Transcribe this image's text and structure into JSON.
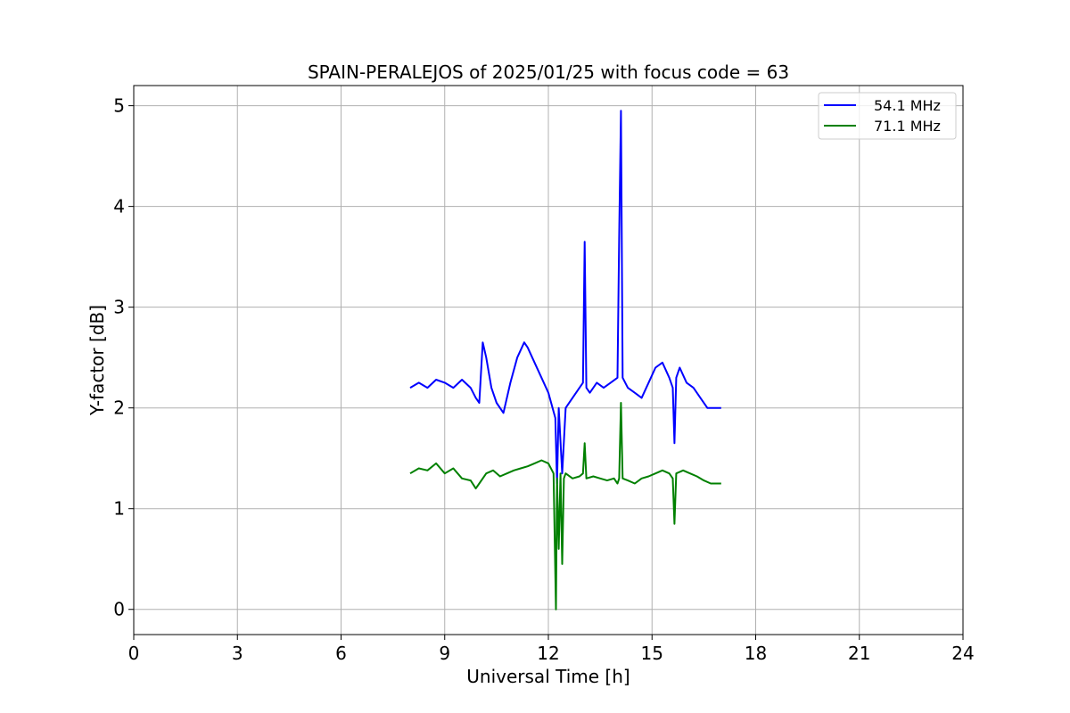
{
  "chart_data": {
    "type": "line",
    "title": "SPAIN-PERALEJOS of 2025/01/25 with focus code = 63",
    "xlabel": "Universal Time [h]",
    "ylabel": "Y-factor [dB]",
    "xlim": [
      0,
      24
    ],
    "ylim": [
      -0.25,
      5.2
    ],
    "xticks": [
      0,
      3,
      6,
      9,
      12,
      15,
      18,
      21,
      24
    ],
    "yticks": [
      0,
      1,
      2,
      3,
      4,
      5
    ],
    "grid": true,
    "legend_position": "top-right",
    "series": [
      {
        "name": "54.1 MHz",
        "color": "#0000ff",
        "x": [
          8.0,
          8.25,
          8.5,
          8.75,
          9.0,
          9.25,
          9.5,
          9.75,
          9.9,
          10.0,
          10.1,
          10.2,
          10.35,
          10.5,
          10.7,
          10.9,
          11.1,
          11.3,
          11.4,
          11.6,
          11.8,
          12.0,
          12.2,
          12.25,
          12.3,
          12.4,
          12.5,
          12.7,
          12.9,
          13.0,
          13.05,
          13.1,
          13.2,
          13.4,
          13.6,
          13.8,
          14.0,
          14.05,
          14.1,
          14.15,
          14.3,
          14.5,
          14.7,
          14.9,
          15.1,
          15.3,
          15.5,
          15.6,
          15.65,
          15.7,
          15.8,
          16.0,
          16.2,
          16.4,
          16.6,
          16.8,
          17.0
        ],
        "y": [
          2.2,
          2.25,
          2.2,
          2.28,
          2.25,
          2.2,
          2.28,
          2.2,
          2.1,
          2.05,
          2.65,
          2.5,
          2.2,
          2.05,
          1.95,
          2.25,
          2.5,
          2.65,
          2.6,
          2.45,
          2.3,
          2.15,
          1.9,
          1.25,
          2.0,
          1.35,
          2.0,
          2.1,
          2.2,
          2.25,
          3.65,
          2.2,
          2.15,
          2.25,
          2.2,
          2.25,
          2.3,
          3.7,
          4.95,
          2.3,
          2.2,
          2.15,
          2.1,
          2.25,
          2.4,
          2.45,
          2.3,
          2.2,
          1.65,
          2.3,
          2.4,
          2.25,
          2.2,
          2.1,
          2.0,
          2.0,
          2.0
        ]
      },
      {
        "name": "71.1 MHz",
        "color": "#008000",
        "x": [
          8.0,
          8.25,
          8.5,
          8.75,
          9.0,
          9.25,
          9.5,
          9.75,
          9.9,
          10.0,
          10.2,
          10.4,
          10.6,
          10.8,
          11.0,
          11.2,
          11.4,
          11.6,
          11.8,
          12.0,
          12.15,
          12.2,
          12.22,
          12.25,
          12.3,
          12.35,
          12.4,
          12.45,
          12.5,
          12.7,
          12.9,
          13.0,
          13.05,
          13.1,
          13.3,
          13.5,
          13.7,
          13.9,
          14.0,
          14.05,
          14.1,
          14.15,
          14.3,
          14.5,
          14.7,
          14.9,
          15.1,
          15.3,
          15.5,
          15.6,
          15.65,
          15.7,
          15.9,
          16.1,
          16.3,
          16.5,
          16.7,
          17.0
        ],
        "y": [
          1.35,
          1.4,
          1.38,
          1.45,
          1.35,
          1.4,
          1.3,
          1.28,
          1.2,
          1.25,
          1.35,
          1.38,
          1.32,
          1.35,
          1.38,
          1.4,
          1.42,
          1.45,
          1.48,
          1.45,
          1.35,
          0.35,
          0.0,
          1.3,
          0.6,
          1.35,
          0.45,
          1.3,
          1.35,
          1.3,
          1.32,
          1.35,
          1.65,
          1.3,
          1.32,
          1.3,
          1.28,
          1.3,
          1.25,
          1.3,
          2.05,
          1.3,
          1.28,
          1.25,
          1.3,
          1.32,
          1.35,
          1.38,
          1.35,
          1.3,
          0.85,
          1.35,
          1.38,
          1.35,
          1.32,
          1.28,
          1.25,
          1.25
        ]
      }
    ]
  }
}
